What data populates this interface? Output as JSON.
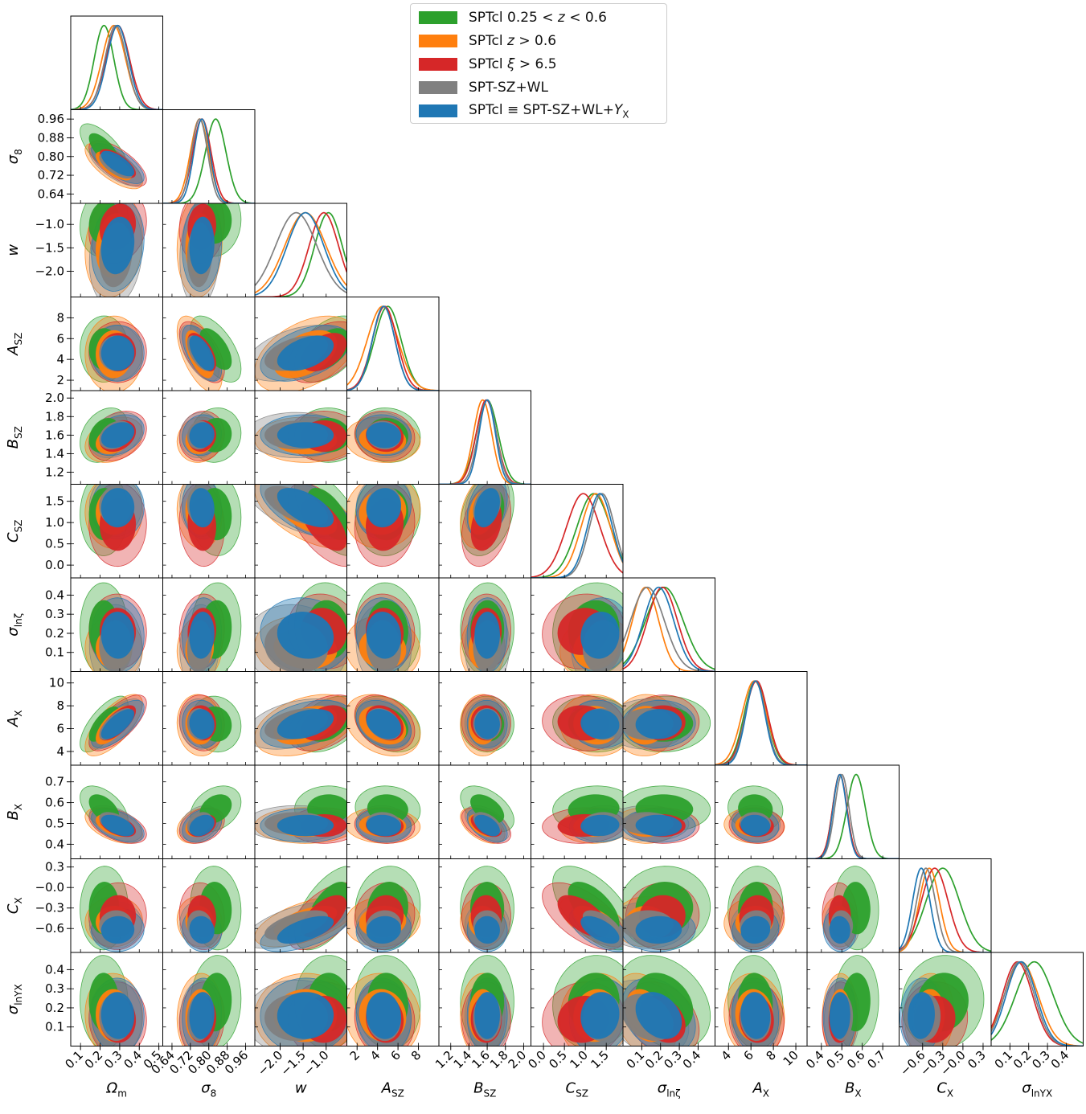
{
  "chart_data": {
    "type": "triangle-corner-plot",
    "parameters": [
      {
        "key": "Om",
        "label": "Ω",
        "sub": "m",
        "range": [
          0.05,
          0.52
        ],
        "ticks": [
          "0.1",
          "0.2",
          "0.3",
          "0.4",
          "0.5"
        ],
        "tickvals": [
          0.1,
          0.2,
          0.3,
          0.4,
          0.5
        ]
      },
      {
        "key": "s8",
        "label": "σ",
        "sub": "8",
        "range": [
          0.6,
          1.0
        ],
        "ticks": [
          "0.64",
          "0.72",
          "0.80",
          "0.88",
          "0.96"
        ],
        "tickvals": [
          0.64,
          0.72,
          0.8,
          0.88,
          0.96
        ]
      },
      {
        "key": "w",
        "label": "w",
        "sub": "",
        "range": [
          -2.55,
          -0.55
        ],
        "ticks": [
          "−2.0",
          "−1.5",
          "−1.0"
        ],
        "tickvals": [
          -2.0,
          -1.5,
          -1.0
        ]
      },
      {
        "key": "Asz",
        "label": "A",
        "sub": "SZ",
        "range": [
          1.0,
          10.0
        ],
        "ticks": [
          "2",
          "4",
          "6",
          "8"
        ],
        "tickvals": [
          2,
          4,
          6,
          8
        ]
      },
      {
        "key": "Bsz",
        "label": "B",
        "sub": "SZ",
        "range": [
          1.07,
          2.08
        ],
        "ticks": [
          "1.2",
          "1.4",
          "1.6",
          "1.8",
          "2.0"
        ],
        "tickvals": [
          1.2,
          1.4,
          1.6,
          1.8,
          2.0
        ]
      },
      {
        "key": "Csz",
        "label": "C",
        "sub": "SZ",
        "range": [
          -0.3,
          1.9
        ],
        "ticks": [
          "0.0",
          "0.5",
          "1.0",
          "1.5"
        ],
        "tickvals": [
          0.0,
          0.5,
          1.0,
          1.5
        ]
      },
      {
        "key": "sz",
        "label": "σ",
        "sub": "lnζ",
        "range": [
          0.0,
          0.49
        ],
        "ticks": [
          "0.1",
          "0.2",
          "0.3",
          "0.4"
        ],
        "tickvals": [
          0.1,
          0.2,
          0.3,
          0.4
        ]
      },
      {
        "key": "Ax",
        "label": "A",
        "sub": "X",
        "range": [
          2.8,
          11.0
        ],
        "ticks": [
          "4",
          "6",
          "8",
          "10"
        ],
        "tickvals": [
          4,
          6,
          8,
          10
        ]
      },
      {
        "key": "Bx",
        "label": "B",
        "sub": "X",
        "range": [
          0.33,
          0.78
        ],
        "ticks": [
          "0.4",
          "0.5",
          "0.6",
          "0.7"
        ],
        "tickvals": [
          0.4,
          0.5,
          0.6,
          0.7
        ]
      },
      {
        "key": "Cx",
        "label": "C",
        "sub": "X",
        "range": [
          -0.95,
          0.42
        ],
        "ticks": [
          "−0.6",
          "−0.3",
          "−0.0",
          "0.3"
        ],
        "tickvals": [
          -0.6,
          -0.3,
          0.0,
          0.3
        ]
      },
      {
        "key": "syx",
        "label": "σ",
        "sub": "lnY_X",
        "range": [
          0.0,
          0.49
        ],
        "ticks": [
          "0.1",
          "0.2",
          "0.3",
          "0.4"
        ],
        "tickvals": [
          0.1,
          0.2,
          0.3,
          0.4
        ]
      }
    ],
    "series": [
      {
        "name": "SPTcl 0.25 < z < 0.6",
        "color": "#2ca02c",
        "mean": [
          0.22,
          0.83,
          -0.95,
          5.0,
          1.6,
          1.2,
          0.22,
          6.4,
          0.57,
          -0.3,
          0.23
        ],
        "sd": [
          0.05,
          0.045,
          0.3,
          1.3,
          0.12,
          0.4,
          0.1,
          1.0,
          0.045,
          0.25,
          0.1
        ]
      },
      {
        "name": "SPTcl z > 0.6",
        "color": "#ff7f0e",
        "mean": [
          0.27,
          0.76,
          -1.45,
          4.5,
          1.55,
          1.25,
          0.12,
          6.3,
          0.49,
          -0.5,
          0.16
        ],
        "sd": [
          0.06,
          0.04,
          0.45,
          1.5,
          0.1,
          0.35,
          0.07,
          1.1,
          0.035,
          0.15,
          0.09
        ]
      },
      {
        "name": "SPTcl ξ > 6.5",
        "color": "#d62728",
        "mean": [
          0.29,
          0.77,
          -1.05,
          4.7,
          1.59,
          0.95,
          0.21,
          6.5,
          0.49,
          -0.42,
          0.14
        ],
        "sd": [
          0.06,
          0.04,
          0.32,
          1.2,
          0.11,
          0.4,
          0.08,
          1.0,
          0.035,
          0.2,
          0.08
        ]
      },
      {
        "name": "SPT-SZ+WL",
        "color": "#808080",
        "mean": [
          0.28,
          0.76,
          -1.65,
          4.6,
          1.6,
          1.4,
          0.13,
          6.4,
          0.5,
          -0.55,
          0.15
        ],
        "sd": [
          0.055,
          0.035,
          0.45,
          1.1,
          0.1,
          0.3,
          0.09,
          0.9,
          0.035,
          0.14,
          0.08
        ]
      },
      {
        "name": "SPTcl ≡ SPT-SZ+WL+Y_X",
        "color": "#1f77b4",
        "mean": [
          0.29,
          0.77,
          -1.45,
          4.6,
          1.6,
          1.35,
          0.19,
          6.4,
          0.49,
          -0.62,
          0.16
        ],
        "sd": [
          0.055,
          0.035,
          0.4,
          1.1,
          0.09,
          0.3,
          0.08,
          0.85,
          0.033,
          0.13,
          0.08
        ]
      }
    ]
  },
  "legend": {
    "items": [
      {
        "pre": "SPTcl 0.25 < ",
        "italic": "z",
        "post": " < 0.6",
        "sub": ""
      },
      {
        "pre": "SPTcl ",
        "italic": "z",
        "post": " > 0.6",
        "sub": ""
      },
      {
        "pre": "SPTcl ",
        "italic": "ξ",
        "post": " > 6.5",
        "sub": ""
      },
      {
        "pre": "SPT-SZ+WL",
        "italic": "",
        "post": "",
        "sub": ""
      },
      {
        "pre": "SPTcl  ≡  SPT-SZ+WL+",
        "italic": "Y",
        "post": "",
        "sub": "X"
      }
    ]
  }
}
